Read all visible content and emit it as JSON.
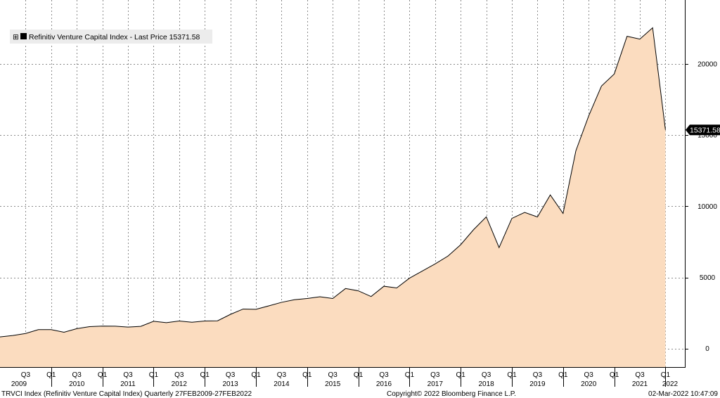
{
  "chart_data": {
    "type": "area",
    "legend": {
      "label": "Refinitiv Venture Capital Index - Last Price 15371.58",
      "placement": "top-left",
      "expand_glyph": "⊞"
    },
    "last_value_label": "15371.58",
    "x_quarter_labels": [
      {
        "q": "Q3",
        "year": 2009,
        "quarter": 3
      },
      {
        "q": "Q1",
        "year": 2010,
        "quarter": 1
      },
      {
        "q": "Q3",
        "year": 2010,
        "quarter": 3
      },
      {
        "q": "Q1",
        "year": 2011,
        "quarter": 1
      },
      {
        "q": "Q3",
        "year": 2011,
        "quarter": 3
      },
      {
        "q": "Q1",
        "year": 2012,
        "quarter": 1
      },
      {
        "q": "Q3",
        "year": 2012,
        "quarter": 3
      },
      {
        "q": "Q1",
        "year": 2013,
        "quarter": 1
      },
      {
        "q": "Q3",
        "year": 2013,
        "quarter": 3
      },
      {
        "q": "Q1",
        "year": 2014,
        "quarter": 1
      },
      {
        "q": "Q3",
        "year": 2014,
        "quarter": 3
      },
      {
        "q": "Q1",
        "year": 2015,
        "quarter": 1
      },
      {
        "q": "Q3",
        "year": 2015,
        "quarter": 3
      },
      {
        "q": "Q1",
        "year": 2016,
        "quarter": 1
      },
      {
        "q": "Q3",
        "year": 2016,
        "quarter": 3
      },
      {
        "q": "Q1",
        "year": 2017,
        "quarter": 1
      },
      {
        "q": "Q3",
        "year": 2017,
        "quarter": 3
      },
      {
        "q": "Q1",
        "year": 2018,
        "quarter": 1
      },
      {
        "q": "Q3",
        "year": 2018,
        "quarter": 3
      },
      {
        "q": "Q1",
        "year": 2019,
        "quarter": 1
      },
      {
        "q": "Q3",
        "year": 2019,
        "quarter": 3
      },
      {
        "q": "Q1",
        "year": 2020,
        "quarter": 1
      },
      {
        "q": "Q3",
        "year": 2020,
        "quarter": 3
      },
      {
        "q": "Q1",
        "year": 2021,
        "quarter": 1
      },
      {
        "q": "Q3",
        "year": 2021,
        "quarter": 3
      },
      {
        "q": "Q1",
        "year": 2022,
        "quarter": 1
      }
    ],
    "x_year_labels": [
      "2009",
      "2010",
      "2011",
      "2012",
      "2013",
      "2014",
      "2015",
      "2016",
      "2017",
      "2018",
      "2019",
      "2020",
      "2021",
      "2022"
    ],
    "y_ticks": [
      0,
      5000,
      10000,
      15000,
      20000
    ],
    "y_tick_labels": [
      "0",
      "5000",
      "10000",
      "15000",
      "20000"
    ],
    "ylim": [
      -1300,
      24500
    ],
    "grid": true,
    "x_start": {
      "year": 2009,
      "quarter": 1
    },
    "series": [
      {
        "color": "#fbdcbf",
        "line_color": "#000000",
        "points": [
          {
            "year": 2009,
            "quarter": 1,
            "value": 820
          },
          {
            "year": 2009,
            "quarter": 2,
            "value": 920
          },
          {
            "year": 2009,
            "quarter": 3,
            "value": 1060
          },
          {
            "year": 2009,
            "quarter": 4,
            "value": 1330
          },
          {
            "year": 2010,
            "quarter": 1,
            "value": 1330
          },
          {
            "year": 2010,
            "quarter": 2,
            "value": 1150
          },
          {
            "year": 2010,
            "quarter": 3,
            "value": 1400
          },
          {
            "year": 2010,
            "quarter": 4,
            "value": 1540
          },
          {
            "year": 2011,
            "quarter": 1,
            "value": 1580
          },
          {
            "year": 2011,
            "quarter": 2,
            "value": 1570
          },
          {
            "year": 2011,
            "quarter": 3,
            "value": 1510
          },
          {
            "year": 2011,
            "quarter": 4,
            "value": 1560
          },
          {
            "year": 2012,
            "quarter": 1,
            "value": 1920
          },
          {
            "year": 2012,
            "quarter": 2,
            "value": 1820
          },
          {
            "year": 2012,
            "quarter": 3,
            "value": 1940
          },
          {
            "year": 2012,
            "quarter": 4,
            "value": 1850
          },
          {
            "year": 2013,
            "quarter": 1,
            "value": 1940
          },
          {
            "year": 2013,
            "quarter": 2,
            "value": 1950
          },
          {
            "year": 2013,
            "quarter": 3,
            "value": 2400
          },
          {
            "year": 2013,
            "quarter": 4,
            "value": 2780
          },
          {
            "year": 2014,
            "quarter": 1,
            "value": 2760
          },
          {
            "year": 2014,
            "quarter": 2,
            "value": 3000
          },
          {
            "year": 2014,
            "quarter": 3,
            "value": 3250
          },
          {
            "year": 2014,
            "quarter": 4,
            "value": 3430
          },
          {
            "year": 2015,
            "quarter": 1,
            "value": 3520
          },
          {
            "year": 2015,
            "quarter": 2,
            "value": 3640
          },
          {
            "year": 2015,
            "quarter": 3,
            "value": 3520
          },
          {
            "year": 2015,
            "quarter": 4,
            "value": 4220
          },
          {
            "year": 2016,
            "quarter": 1,
            "value": 4060
          },
          {
            "year": 2016,
            "quarter": 2,
            "value": 3660
          },
          {
            "year": 2016,
            "quarter": 3,
            "value": 4380
          },
          {
            "year": 2016,
            "quarter": 4,
            "value": 4260
          },
          {
            "year": 2017,
            "quarter": 1,
            "value": 4950
          },
          {
            "year": 2017,
            "quarter": 2,
            "value": 5450
          },
          {
            "year": 2017,
            "quarter": 3,
            "value": 5950
          },
          {
            "year": 2017,
            "quarter": 4,
            "value": 6500
          },
          {
            "year": 2018,
            "quarter": 1,
            "value": 7300
          },
          {
            "year": 2018,
            "quarter": 2,
            "value": 8350
          },
          {
            "year": 2018,
            "quarter": 3,
            "value": 9260
          },
          {
            "year": 2018,
            "quarter": 4,
            "value": 7100
          },
          {
            "year": 2019,
            "quarter": 1,
            "value": 9150
          },
          {
            "year": 2019,
            "quarter": 2,
            "value": 9570
          },
          {
            "year": 2019,
            "quarter": 3,
            "value": 9250
          },
          {
            "year": 2019,
            "quarter": 4,
            "value": 10800
          },
          {
            "year": 2020,
            "quarter": 1,
            "value": 9500
          },
          {
            "year": 2020,
            "quarter": 2,
            "value": 13900
          },
          {
            "year": 2020,
            "quarter": 3,
            "value": 16350
          },
          {
            "year": 2020,
            "quarter": 4,
            "value": 18450
          },
          {
            "year": 2021,
            "quarter": 1,
            "value": 19300
          },
          {
            "year": 2021,
            "quarter": 2,
            "value": 21950
          },
          {
            "year": 2021,
            "quarter": 3,
            "value": 21750
          },
          {
            "year": 2021,
            "quarter": 4,
            "value": 22550
          },
          {
            "year": 2022,
            "quarter": 1,
            "value": 15371.58
          }
        ]
      }
    ]
  },
  "footer": {
    "left": "TRVCI Index (Refinitiv Venture Capital Index)  Quarterly 27FEB2009-27FEB2022",
    "center": "Copyright© 2022 Bloomberg Finance L.P.",
    "right": "02-Mar-2022 10:47:09"
  }
}
